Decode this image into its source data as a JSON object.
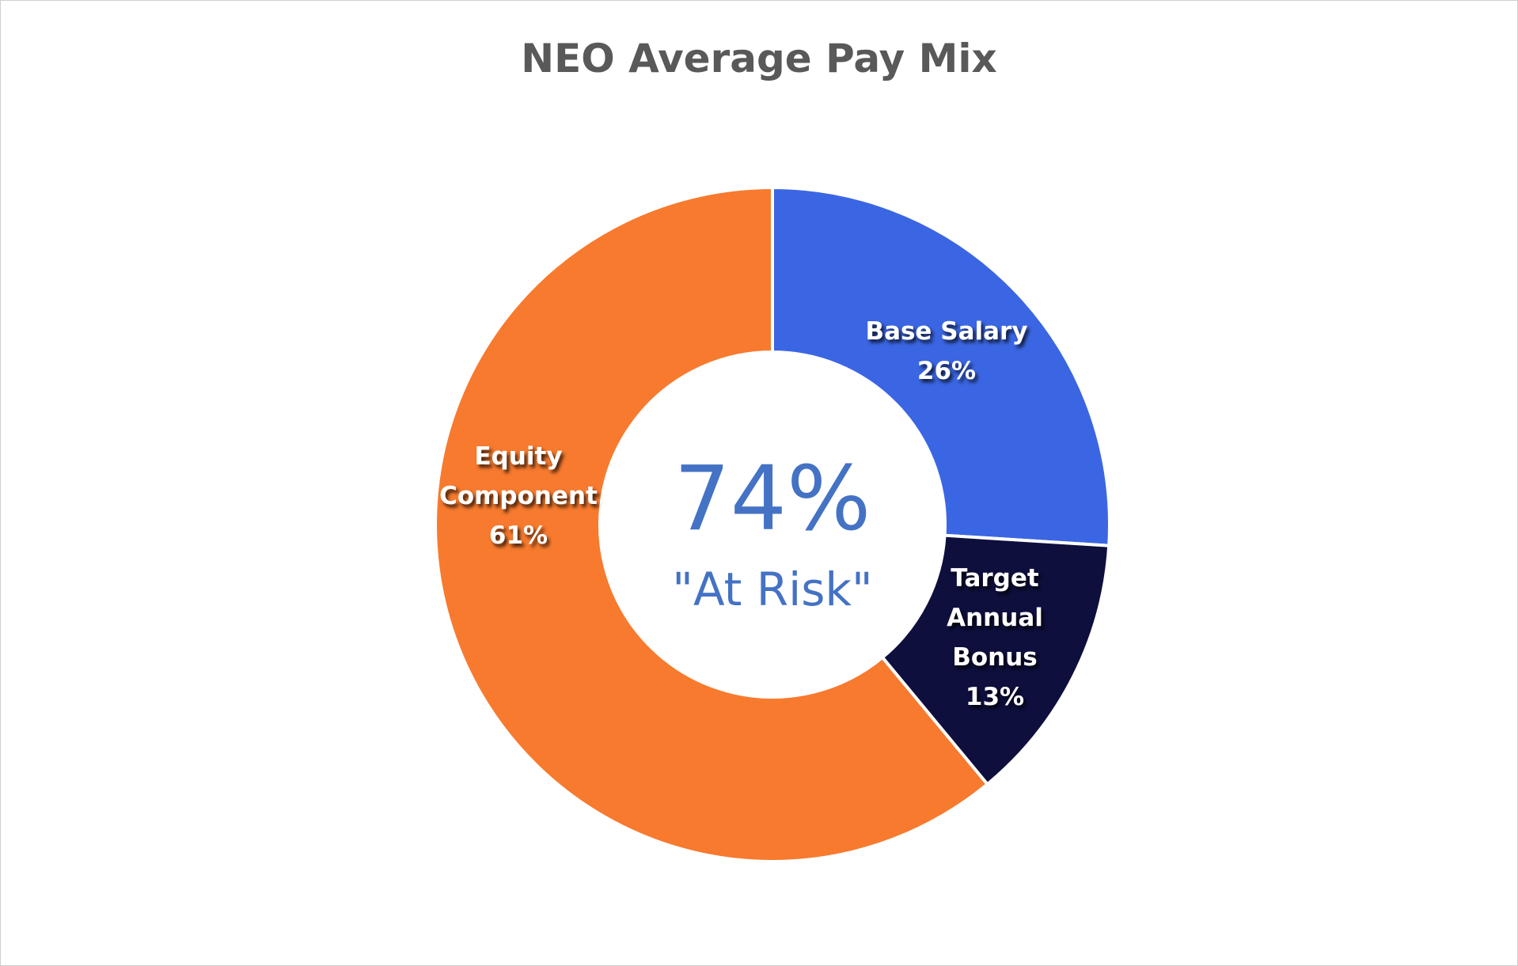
{
  "chart_data": {
    "type": "donut",
    "title": "NEO Average Pay Mix",
    "categories": [
      "Base Salary",
      "Target Annual Bonus",
      "Equity Component"
    ],
    "values": [
      26,
      13,
      61
    ],
    "value_labels": [
      "26%",
      "13%",
      "61%"
    ],
    "colors": [
      "#3b66e3",
      "#0e0f3d",
      "#f77a2e"
    ],
    "annotations": [
      "74%",
      "\"At Risk\""
    ]
  }
}
